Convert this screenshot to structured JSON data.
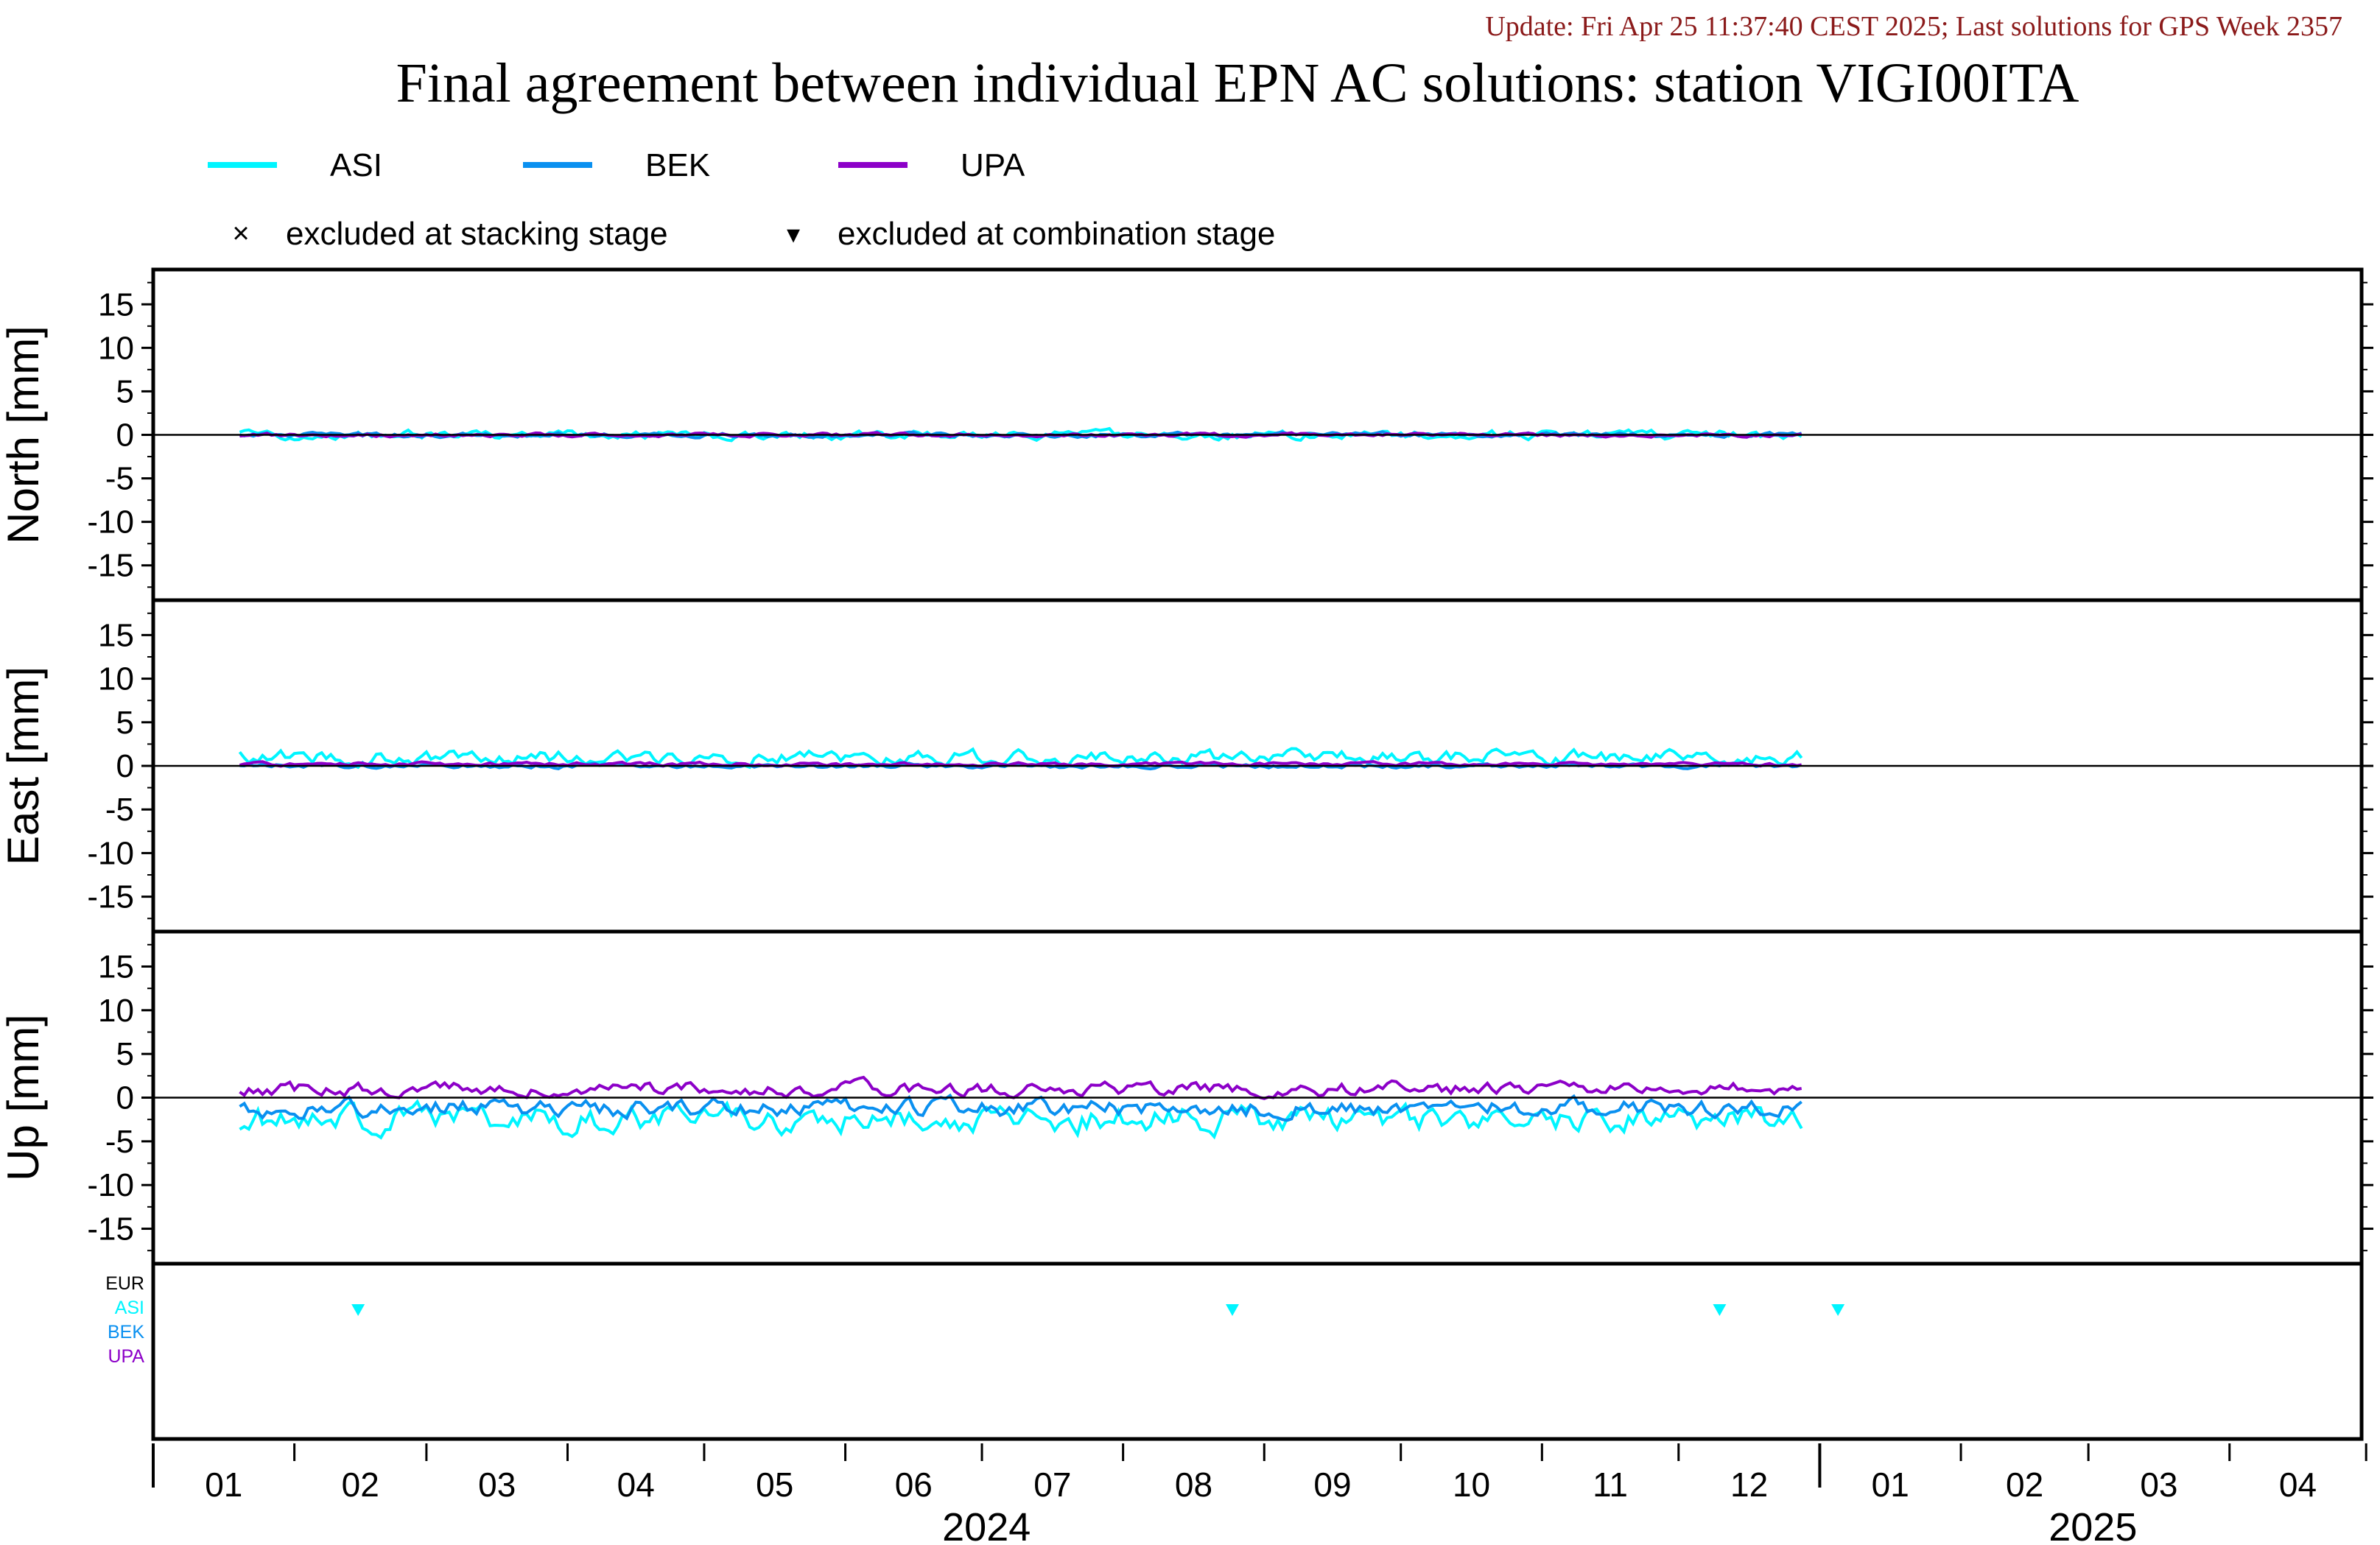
{
  "update_text": "Update: Fri Apr 25 11:37:40 CEST 2025; Last solutions for GPS Week 2357",
  "title": "Final agreement between individual EPN AC solutions: station VIGI00ITA",
  "colors": {
    "ASI": "#00f5ff",
    "BEK": "#0a90f0",
    "UPA": "#8c00c8",
    "EUR": "#000000",
    "update": "#8b1a1a"
  },
  "legend": {
    "series": [
      "ASI",
      "BEK",
      "UPA"
    ],
    "excluded_stacking": "excluded at stacking stage",
    "excluded_combination": "excluded at combination stage",
    "stacking_symbol": "×",
    "combination_symbol": "▾"
  },
  "exclusion_panel": {
    "labels": [
      "EUR",
      "ASI",
      "BEK",
      "UPA"
    ]
  },
  "chart_data": {
    "type": "line",
    "x_axis": {
      "range": [
        "2024-01-01",
        "2025-04-30"
      ],
      "month_labels": [
        "01",
        "02",
        "03",
        "04",
        "05",
        "06",
        "07",
        "08",
        "09",
        "10",
        "11",
        "12",
        "01",
        "02",
        "03",
        "04"
      ],
      "year_labels": [
        "2024",
        "2025"
      ]
    },
    "panels": [
      {
        "key": "north",
        "ylabel": "North [mm]",
        "ylim": [
          -19,
          19
        ],
        "ticks": [
          15,
          10,
          5,
          0,
          -5,
          -10,
          -15
        ],
        "series": [
          {
            "name": "ASI",
            "x_range": [
              "2024-01-20",
              "2024-12-28"
            ],
            "level": 0.0,
            "amplitude": 1.0
          },
          {
            "name": "BEK",
            "x_range": [
              "2024-01-20",
              "2024-12-28"
            ],
            "level": 0.0,
            "amplitude": 0.5
          },
          {
            "name": "UPA",
            "x_range": [
              "2024-01-20",
              "2024-12-28"
            ],
            "level": 0.0,
            "amplitude": 0.4
          }
        ]
      },
      {
        "key": "east",
        "ylabel": "East [mm]",
        "ylim": [
          -19,
          19
        ],
        "ticks": [
          15,
          10,
          5,
          0,
          -5,
          -10,
          -15
        ],
        "series": [
          {
            "name": "ASI",
            "x_range": [
              "2024-01-20",
              "2024-12-28"
            ],
            "level": 1.0,
            "amplitude": 1.6
          },
          {
            "name": "BEK",
            "x_range": [
              "2024-01-20",
              "2024-12-28"
            ],
            "level": 0.0,
            "amplitude": 0.5
          },
          {
            "name": "UPA",
            "x_range": [
              "2024-01-20",
              "2024-12-28"
            ],
            "level": 0.2,
            "amplitude": 0.4
          }
        ]
      },
      {
        "key": "up",
        "ylabel": "Up [mm]",
        "ylim": [
          -19,
          19
        ],
        "ticks": [
          15,
          10,
          5,
          0,
          -5,
          -10,
          -15
        ],
        "series": [
          {
            "name": "ASI",
            "x_range": [
              "2024-01-20",
              "2024-12-28"
            ],
            "level": -2.5,
            "amplitude": 3.0
          },
          {
            "name": "BEK",
            "x_range": [
              "2024-01-20",
              "2024-12-28"
            ],
            "level": -1.2,
            "amplitude": 2.0
          },
          {
            "name": "UPA",
            "x_range": [
              "2024-01-20",
              "2024-12-28"
            ],
            "level": 1.0,
            "amplitude": 1.5
          }
        ]
      }
    ],
    "exclusions": [
      {
        "ac": "ASI",
        "date": "2024-02-15",
        "stage": "combination"
      },
      {
        "ac": "ASI",
        "date": "2024-08-25",
        "stage": "combination"
      },
      {
        "ac": "ASI",
        "date": "2024-12-10",
        "stage": "combination"
      },
      {
        "ac": "ASI",
        "date": "2025-01-05",
        "stage": "combination"
      }
    ]
  }
}
